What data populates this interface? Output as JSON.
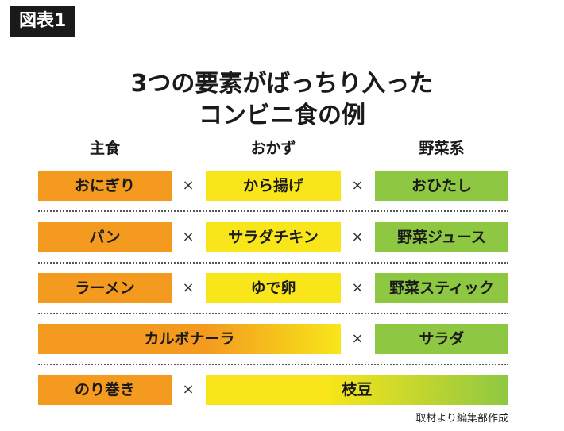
{
  "badge": "図表1",
  "title": {
    "line1": "3つの要素がばっちり入った",
    "line2": "コンビニ食の例"
  },
  "columns": [
    "主食",
    "おかず",
    "野菜系"
  ],
  "operator": "×",
  "rows": [
    {
      "staple": "おにぎり",
      "side": "から揚げ",
      "vegetable": "おひたし"
    },
    {
      "staple": "パン",
      "side": "サラダチキン",
      "vegetable": "野菜ジュース"
    },
    {
      "staple": "ラーメン",
      "side": "ゆで卵",
      "vegetable": "野菜スティック"
    },
    {
      "staple_side": "カルボナーラ",
      "vegetable": "サラダ"
    },
    {
      "staple": "のり巻き",
      "side_vegetable": "枝豆"
    }
  ],
  "credit": "取材より編集部作成",
  "colors": {
    "staple": "#f39a1f",
    "side": "#f8e61a",
    "vegetable": "#8ec742"
  }
}
